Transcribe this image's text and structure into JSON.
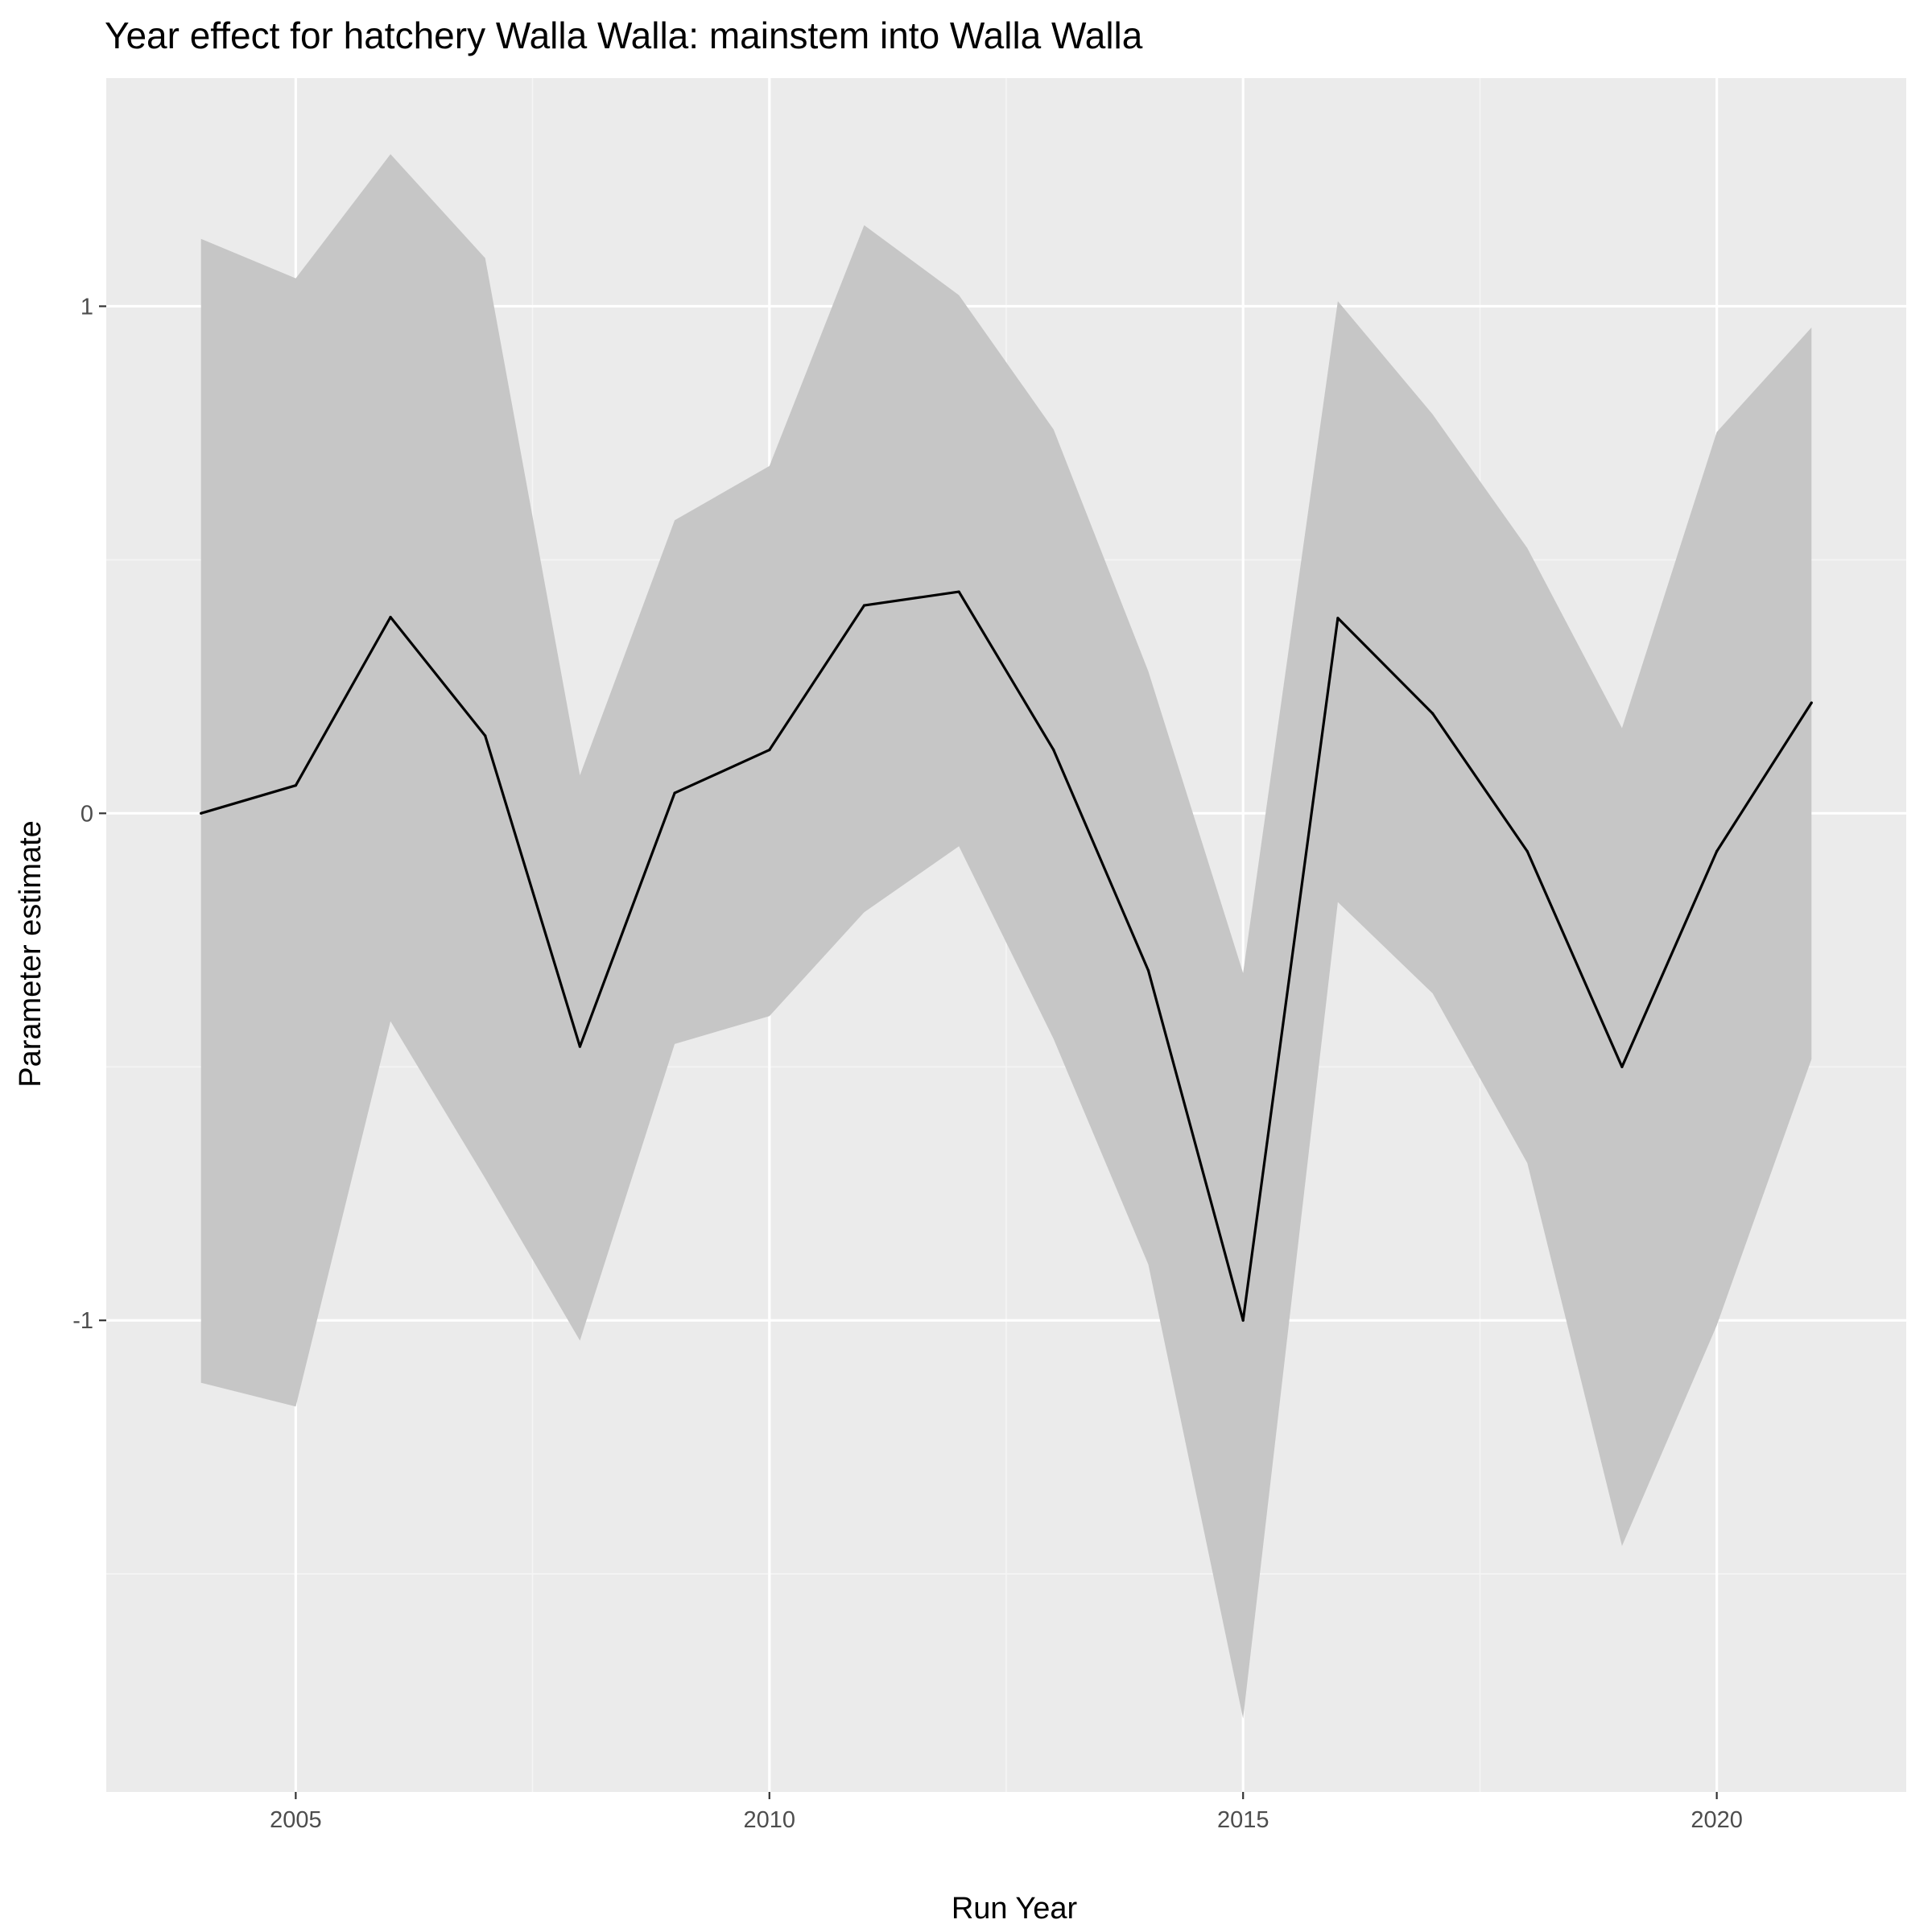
{
  "chart_data": {
    "type": "area",
    "title": "Year effect for hatchery Walla Walla: mainstem into Walla Walla",
    "xlabel": "Run Year",
    "ylabel": "Parameter estimate",
    "xlim": [
      2003,
      2022
    ],
    "ylim": [
      -1.93,
      1.45
    ],
    "x_ticks": [
      2005,
      2010,
      2015,
      2020
    ],
    "x_tick_labels": [
      "2005",
      "2010",
      "2015",
      "2020"
    ],
    "y_ticks": [
      -1,
      0,
      1
    ],
    "y_tick_labels": [
      "-1",
      "0",
      "1"
    ],
    "x_minor_ticks": [
      2007.5,
      2012.5,
      2017.5
    ],
    "y_minor_ticks": [
      -1.5,
      -0.5,
      0.5
    ],
    "grid": true,
    "x": [
      2004,
      2005,
      2006,
      2007,
      2008,
      2009,
      2010,
      2011,
      2012,
      2013,
      2014,
      2015,
      2016,
      2017,
      2018,
      2019,
      2020,
      2021
    ],
    "series": [
      {
        "estimate": [
          0.0,
          0.055,
          0.387,
          0.153,
          -0.46,
          0.04,
          0.125,
          0.41,
          0.437,
          0.125,
          -0.31,
          -1.0,
          0.385,
          0.197,
          -0.075,
          -0.5,
          -0.075,
          0.218
        ],
        "lower": [
          -1.123,
          -1.17,
          -0.41,
          -0.72,
          -1.04,
          -0.455,
          -0.4,
          -0.195,
          -0.065,
          -0.445,
          -0.89,
          -1.785,
          -0.175,
          -0.355,
          -0.69,
          -1.445,
          -1.01,
          -0.485
        ],
        "upper": [
          1.133,
          1.055,
          1.3,
          1.095,
          0.075,
          0.578,
          0.685,
          1.16,
          1.022,
          0.757,
          0.28,
          -0.315,
          1.01,
          0.787,
          0.523,
          0.168,
          0.752,
          0.958
        ]
      }
    ],
    "colors": {
      "panel_background": "#ebebeb",
      "grid_major": "#ffffff",
      "grid_minor": "#f5f5f5",
      "ribbon_fill": "#c6c6c6",
      "line": "#000000",
      "tick_label": "#4d4d4d"
    }
  }
}
